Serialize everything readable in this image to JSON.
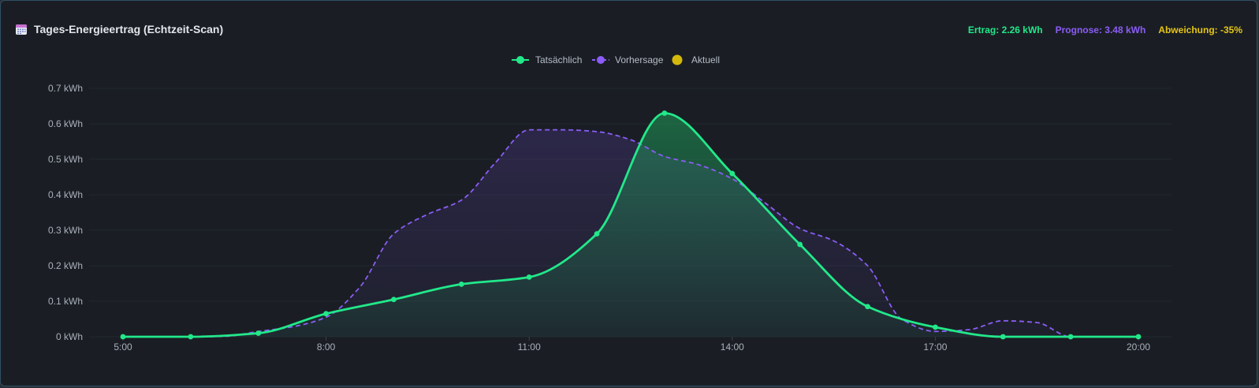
{
  "header": {
    "title": "Tages-Energieertrag (Echtzeit-Scan)",
    "icon": "calendar-icon",
    "stats": [
      {
        "label": "Ertrag: 2.26 kWh",
        "color": "#22e88a"
      },
      {
        "label": "Prognose: 3.48 kWh",
        "color": "#8b5cf6"
      },
      {
        "label": "Abweichung: -35%",
        "color": "#e6c417"
      }
    ]
  },
  "chart_data": {
    "type": "line",
    "title": "Tages-Energieertrag (Echtzeit-Scan)",
    "xlabel": "",
    "ylabel": "",
    "x_ticks": [
      "5:00",
      "8:00",
      "11:00",
      "14:00",
      "17:00",
      "20:00"
    ],
    "y_ticks": [
      "0 kWh",
      "0.1 kWh",
      "0.2 kWh",
      "0.3 kWh",
      "0.4 kWh",
      "0.5 kWh",
      "0.6 kWh",
      "0.7 kWh"
    ],
    "xlim": [
      5,
      20.5
    ],
    "ylim": [
      0,
      0.7
    ],
    "legend_position": "top-center",
    "series": [
      {
        "name": "Tatsächlich",
        "color": "#22e88a",
        "style": "solid",
        "markers": true,
        "x": [
          5,
          6,
          7,
          8,
          9,
          10,
          11,
          12,
          13,
          14,
          15,
          16,
          17,
          18,
          19,
          20
        ],
        "y": [
          0,
          0,
          0.01,
          0.065,
          0.105,
          0.148,
          0.168,
          0.29,
          0.63,
          0.46,
          0.26,
          0.085,
          0.027,
          0,
          0,
          0
        ]
      },
      {
        "name": "Vorhersage",
        "color": "#8b5cf6",
        "style": "dashed",
        "markers": false,
        "x": [
          5,
          6,
          6.5,
          7,
          7.5,
          8,
          8.5,
          9,
          9.5,
          10,
          10.5,
          11,
          11.5,
          12,
          12.5,
          13,
          13.5,
          14,
          14.5,
          15,
          15.5,
          16,
          16.5,
          17,
          17.5,
          18,
          18.5,
          19,
          19.5,
          20
        ],
        "y": [
          0,
          0,
          0.001,
          0.015,
          0.028,
          0.055,
          0.14,
          0.29,
          0.345,
          0.385,
          0.49,
          0.583,
          0.583,
          0.578,
          0.555,
          0.508,
          0.485,
          0.445,
          0.375,
          0.305,
          0.27,
          0.2,
          0.05,
          0.015,
          0.02,
          0.045,
          0.04,
          0,
          0,
          0
        ]
      },
      {
        "name": "Aktuell",
        "color": "#d4b80c",
        "style": "point",
        "markers": true,
        "x": [],
        "y": []
      }
    ]
  }
}
